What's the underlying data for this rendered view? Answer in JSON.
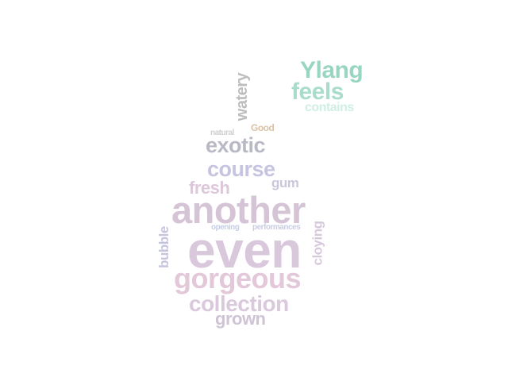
{
  "word_cloud": {
    "words": [
      {
        "text": "Ylang",
        "color": "#98d6c2"
      },
      {
        "text": "feels",
        "color": "#a9dccb"
      },
      {
        "text": "contains",
        "color": "#cfeee4"
      },
      {
        "text": "watery",
        "color": "#bdbdbd"
      },
      {
        "text": "Good",
        "color": "#d8c3a6"
      },
      {
        "text": "natural",
        "color": "#cfcfcf"
      },
      {
        "text": "exotic",
        "color": "#b9b9c6"
      },
      {
        "text": "course",
        "color": "#c6c4e0"
      },
      {
        "text": "gum",
        "color": "#c9c7dc"
      },
      {
        "text": "fresh",
        "color": "#dcc8da"
      },
      {
        "text": "another",
        "color": "#d5c4d6"
      },
      {
        "text": "opening",
        "color": "#c6cee6"
      },
      {
        "text": "performances",
        "color": "#c9cde3"
      },
      {
        "text": "bubble",
        "color": "#c5c5e0"
      },
      {
        "text": "cloying",
        "color": "#d7c8dc"
      },
      {
        "text": "even",
        "color": "#d9c8dc"
      },
      {
        "text": "gorgeous",
        "color": "#e2c8d8"
      },
      {
        "text": "collection",
        "color": "#dac9dc"
      },
      {
        "text": "grown",
        "color": "#cfc4d6"
      }
    ]
  }
}
